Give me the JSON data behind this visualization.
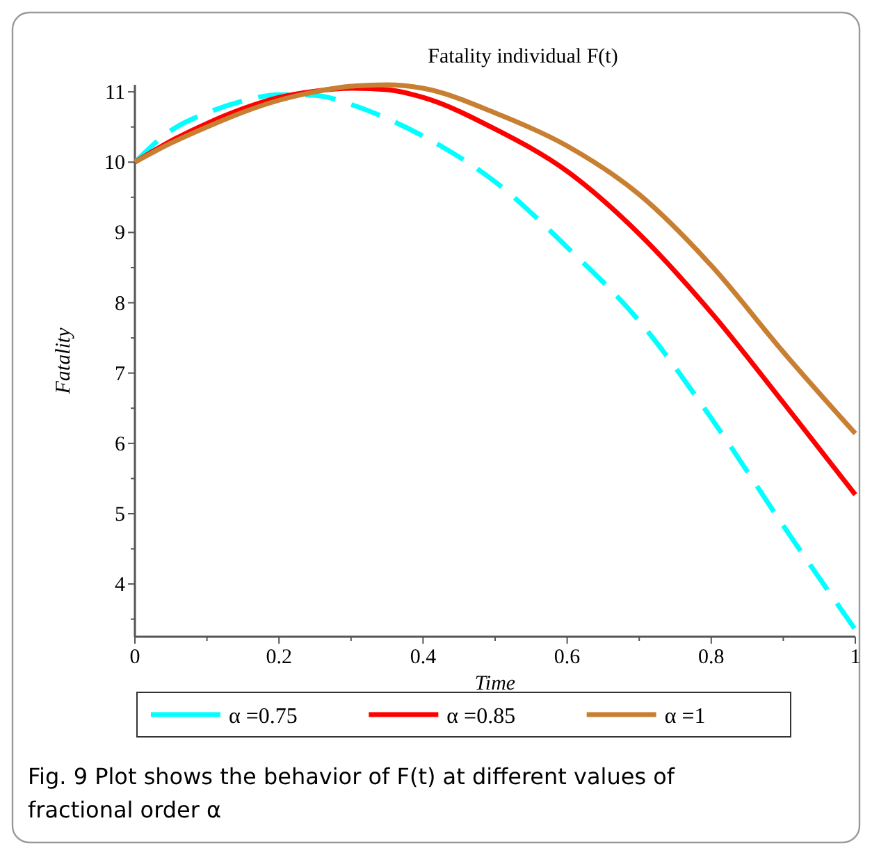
{
  "chart_data": {
    "type": "line",
    "title": "Fatality individual F(t)",
    "xlabel": "Time",
    "ylabel": "Fatality",
    "x": [
      0,
      0.05,
      0.1,
      0.15,
      0.2,
      0.25,
      0.3,
      0.35,
      0.4,
      0.5,
      0.6,
      0.7,
      0.8,
      0.9,
      1
    ],
    "series": [
      {
        "name": "α =0.75",
        "color": "#00ffff",
        "line_style": "dashed",
        "values": [
          10,
          10.45,
          10.7,
          10.87,
          10.96,
          10.95,
          10.82,
          10.62,
          10.37,
          9.72,
          8.79,
          7.74,
          6.36,
          4.83,
          3.35
        ]
      },
      {
        "name": "α =0.85",
        "color": "#ff0000",
        "line_style": "solid",
        "values": [
          10,
          10.3,
          10.55,
          10.76,
          10.92,
          11.01,
          11.05,
          11.03,
          10.92,
          10.47,
          9.87,
          8.98,
          7.86,
          6.58,
          5.27
        ]
      },
      {
        "name": "α =1",
        "color": "#c87f32",
        "line_style": "solid",
        "values": [
          10,
          10.27,
          10.5,
          10.71,
          10.88,
          11.0,
          11.08,
          11.1,
          11.05,
          10.7,
          10.23,
          9.54,
          8.53,
          7.3,
          6.14
        ]
      }
    ],
    "xlim": [
      0,
      1
    ],
    "ylim": [
      3.25,
      11.1
    ],
    "xticks": [
      0,
      {
        "value": 0.1,
        "label": null
      },
      0.2,
      {
        "value": 0.3,
        "label": null
      },
      0.4,
      {
        "value": 0.5,
        "label": null
      },
      0.6,
      {
        "value": 0.7,
        "label": null
      },
      0.8,
      {
        "value": 0.9,
        "label": null
      },
      1
    ],
    "yticks": [
      {
        "value": 3.5,
        "label": null
      },
      4,
      {
        "value": 4.5,
        "label": null
      },
      5,
      {
        "value": 5.5,
        "label": null
      },
      6,
      {
        "value": 6.5,
        "label": null
      },
      7,
      {
        "value": 7.5,
        "label": null
      },
      8,
      {
        "value": 8.5,
        "label": null
      },
      9,
      {
        "value": 9.5,
        "label": null
      },
      10,
      {
        "value": 10.5,
        "label": null
      },
      11
    ],
    "grid": false,
    "legend": "bottom",
    "annotations": [
      "Fig. 9  Plot shows the behavior of F(t) at different values of fractional order α"
    ]
  }
}
